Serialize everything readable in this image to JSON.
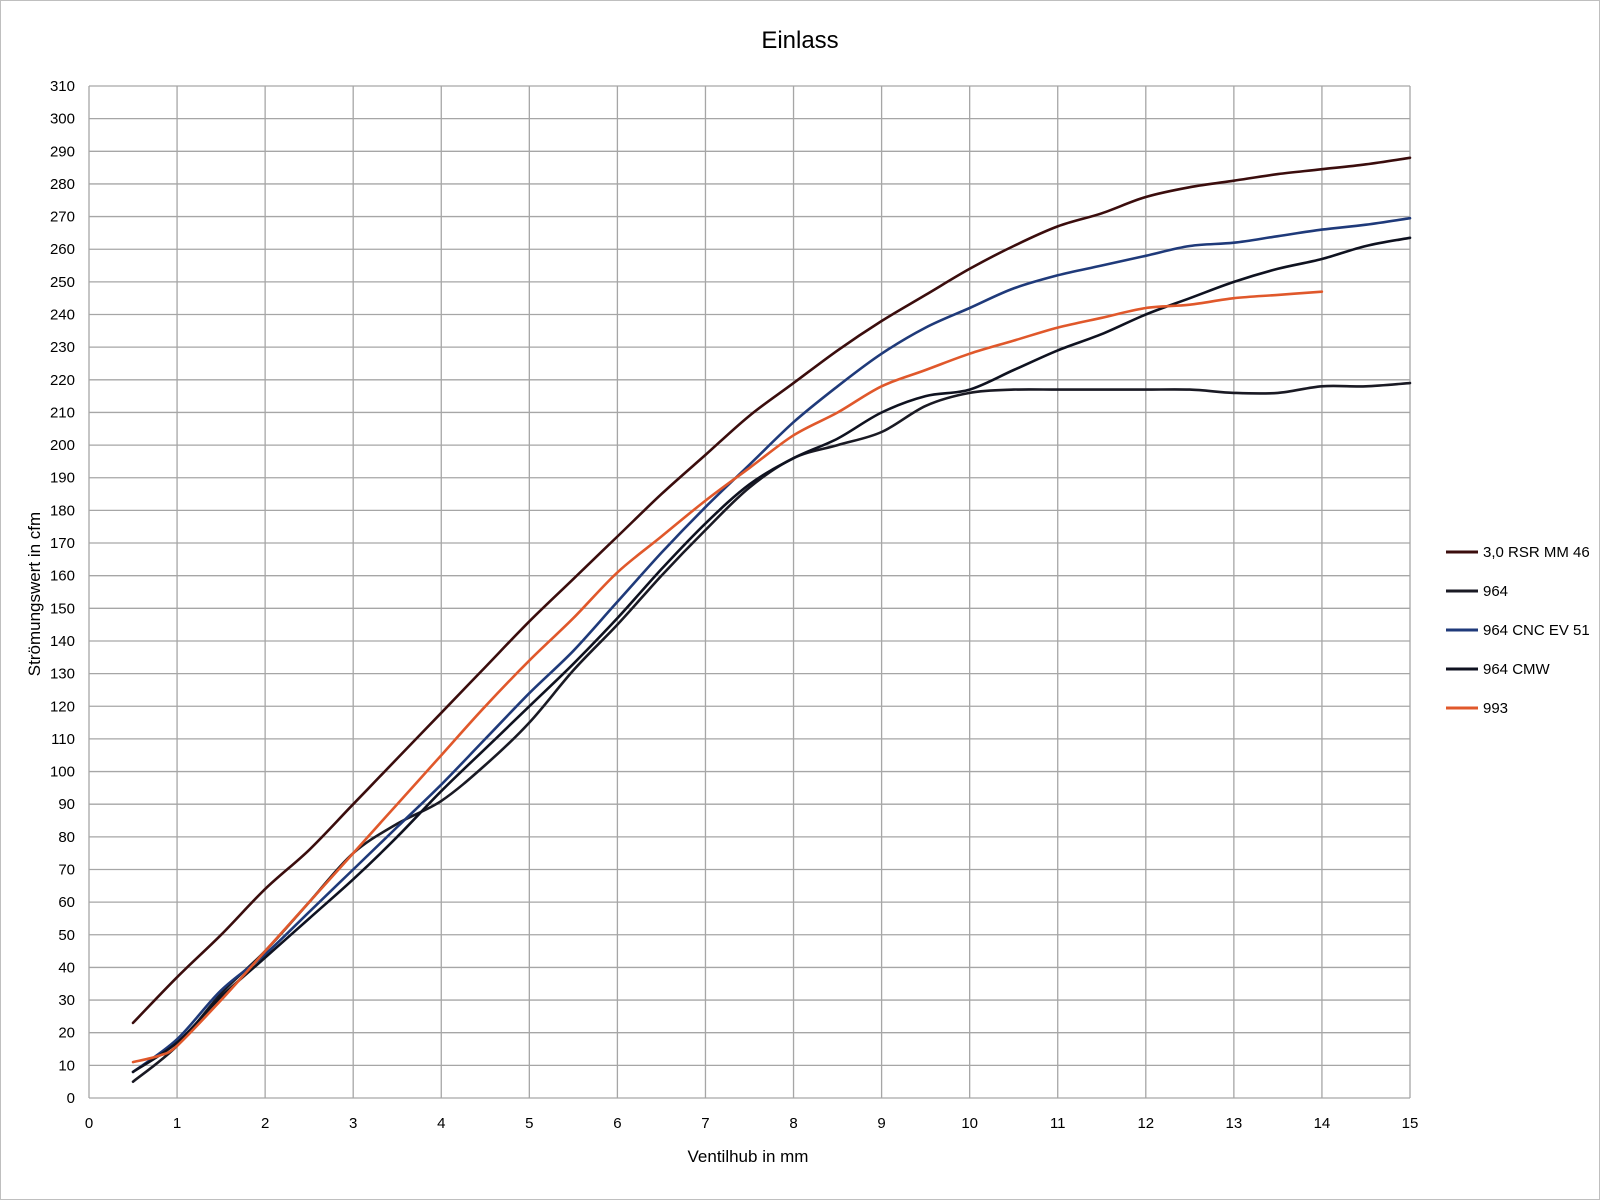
{
  "chart_data": {
    "type": "line",
    "title": "Einlass",
    "xlabel": "Ventilhub in mm",
    "ylabel": "Strömungswert in cfm",
    "xlim": [
      0,
      15
    ],
    "ylim": [
      0,
      310
    ],
    "x_ticks": [
      0,
      1,
      2,
      3,
      4,
      5,
      6,
      7,
      8,
      9,
      10,
      11,
      12,
      13,
      14,
      15
    ],
    "y_ticks": [
      0,
      10,
      20,
      30,
      40,
      50,
      60,
      70,
      80,
      90,
      100,
      110,
      120,
      130,
      140,
      150,
      160,
      170,
      180,
      190,
      200,
      210,
      220,
      230,
      240,
      250,
      260,
      270,
      280,
      290,
      300,
      310
    ],
    "grid": true,
    "legend_position": "right",
    "series": [
      {
        "name": "3,0 RSR MM 46",
        "color": "#3b0d0d",
        "x": [
          0.5,
          1,
          1.5,
          2,
          2.5,
          3,
          3.5,
          4,
          4.5,
          5,
          5.5,
          6,
          6.5,
          7,
          7.5,
          8,
          8.5,
          9,
          9.5,
          10,
          10.5,
          11,
          11.5,
          12,
          12.5,
          13,
          13.5,
          14,
          14.5,
          15
        ],
        "values": [
          23,
          37,
          50,
          64,
          76,
          90,
          104,
          118,
          132,
          146,
          159,
          172,
          185,
          197,
          209,
          219,
          229,
          238,
          246,
          254,
          261,
          267,
          271,
          276,
          279,
          281,
          283,
          284.5,
          286,
          288
        ]
      },
      {
        "name": "964",
        "color": "#1a1a24",
        "x": [
          0.5,
          1,
          1.5,
          2,
          2.5,
          3,
          3.5,
          4,
          4.5,
          5,
          5.5,
          6,
          6.5,
          7,
          7.5,
          8,
          8.5,
          9,
          9.5,
          10,
          10.5,
          11,
          11.5,
          12,
          12.5,
          13,
          13.5,
          14,
          14.5,
          15
        ],
        "values": [
          5,
          16,
          32,
          45,
          60,
          75,
          84,
          91,
          102,
          115,
          131,
          145,
          160,
          174,
          187,
          196,
          200,
          204,
          212,
          216,
          217,
          217,
          217,
          217,
          217,
          216,
          216,
          218,
          218,
          219
        ]
      },
      {
        "name": "964 CNC EV 51",
        "color": "#1f3a7a",
        "x": [
          0.5,
          1,
          1.5,
          2,
          2.5,
          3,
          3.5,
          4,
          4.5,
          5,
          5.5,
          6,
          6.5,
          7,
          7.5,
          8,
          8.5,
          9,
          9.5,
          10,
          10.5,
          11,
          11.5,
          12,
          12.5,
          13,
          13.5,
          14,
          14.5,
          15
        ],
        "values": [
          8,
          18,
          33,
          44,
          57,
          70,
          83,
          96,
          110,
          124,
          137,
          152,
          167,
          181,
          194,
          207,
          218,
          228,
          236,
          242,
          248,
          252,
          255,
          258,
          261,
          262,
          264,
          266,
          267.5,
          269.5
        ]
      },
      {
        "name": "964 CMW",
        "color": "#0f1220",
        "x": [
          0.5,
          1,
          1.5,
          2,
          2.5,
          3,
          3.5,
          4,
          4.5,
          5,
          5.5,
          6,
          6.5,
          7,
          7.5,
          8,
          8.5,
          9,
          9.5,
          10,
          10.5,
          11,
          11.5,
          12,
          12.5,
          13,
          13.5,
          14,
          14.5,
          15
        ],
        "values": [
          8,
          17,
          31,
          43,
          55,
          67,
          80,
          94,
          107,
          120,
          133,
          147,
          162,
          176,
          188,
          196,
          202,
          210,
          215,
          217,
          223,
          229,
          234,
          240,
          245,
          250,
          254,
          257,
          261,
          263.5
        ]
      },
      {
        "name": "993",
        "color": "#e0582b",
        "x": [
          0.5,
          0.8,
          1,
          1.5,
          2,
          2.5,
          3,
          3.5,
          4,
          4.5,
          5,
          5.5,
          6,
          6.5,
          7,
          7.5,
          8,
          8.5,
          9,
          9.5,
          10,
          10.5,
          11,
          11.5,
          12,
          12.5,
          13,
          13.5,
          14
        ],
        "values": [
          11,
          13,
          16,
          30,
          45,
          60,
          75,
          90,
          105,
          120,
          134,
          147,
          161,
          172,
          183,
          193,
          203,
          210,
          218,
          223,
          228,
          232,
          236,
          239,
          242,
          243,
          245,
          246,
          247
        ]
      }
    ]
  }
}
